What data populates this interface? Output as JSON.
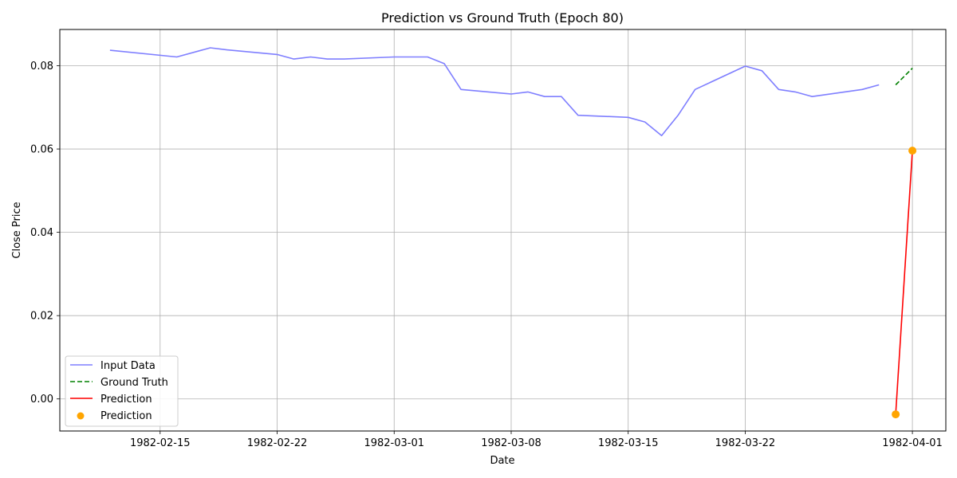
{
  "chart_data": {
    "type": "line",
    "title": "Prediction vs Ground Truth (Epoch 80)",
    "xlabel": "Date",
    "ylabel": "Close Price",
    "x_ticks": [
      "1982-02-15",
      "1982-02-22",
      "1982-03-01",
      "1982-03-08",
      "1982-03-15",
      "1982-03-22",
      "1982-04-01"
    ],
    "y_ticks": [
      "0.00",
      "0.02",
      "0.04",
      "0.06",
      "0.08"
    ],
    "ylim": [
      -0.0077,
      0.0887
    ],
    "xlim": [
      "1982-02-09",
      "1982-04-03"
    ],
    "grid": true,
    "legend_position": "lower-left",
    "series": [
      {
        "name": "Input Data",
        "style": "solid",
        "color": "#7f7fff",
        "points": [
          [
            "1982-02-12",
            0.0837
          ],
          [
            "1982-02-16",
            0.0821
          ],
          [
            "1982-02-18",
            0.0843
          ],
          [
            "1982-02-19",
            0.0838
          ],
          [
            "1982-02-22",
            0.0827
          ],
          [
            "1982-02-23",
            0.0816
          ],
          [
            "1982-02-24",
            0.0821
          ],
          [
            "1982-02-25",
            0.0816
          ],
          [
            "1982-02-26",
            0.0816
          ],
          [
            "1982-03-01",
            0.0821
          ],
          [
            "1982-03-03",
            0.0821
          ],
          [
            "1982-03-04",
            0.0805
          ],
          [
            "1982-03-05",
            0.0743
          ],
          [
            "1982-03-08",
            0.0732
          ],
          [
            "1982-03-09",
            0.0737
          ],
          [
            "1982-03-10",
            0.0726
          ],
          [
            "1982-03-11",
            0.0726
          ],
          [
            "1982-03-12",
            0.0681
          ],
          [
            "1982-03-15",
            0.0676
          ],
          [
            "1982-03-16",
            0.0665
          ],
          [
            "1982-03-17",
            0.0632
          ],
          [
            "1982-03-18",
            0.0682
          ],
          [
            "1982-03-19",
            0.0743
          ],
          [
            "1982-03-22",
            0.0799
          ],
          [
            "1982-03-23",
            0.0788
          ],
          [
            "1982-03-24",
            0.0743
          ],
          [
            "1982-03-25",
            0.0737
          ],
          [
            "1982-03-26",
            0.0726
          ],
          [
            "1982-03-29",
            0.0743
          ],
          [
            "1982-03-30",
            0.0754
          ]
        ]
      },
      {
        "name": "Ground Truth",
        "style": "dashed",
        "color": "#008000",
        "points": [
          [
            "1982-03-31",
            0.0754
          ],
          [
            "1982-04-01",
            0.0794
          ]
        ]
      },
      {
        "name": "Prediction",
        "style": "solid",
        "color": "#ff0000",
        "points": [
          [
            "1982-03-31",
            -0.0037
          ],
          [
            "1982-04-01",
            0.0596
          ]
        ]
      },
      {
        "name": "Prediction",
        "style": "scatter",
        "color": "#ffa500",
        "points": [
          [
            "1982-03-31",
            -0.0037
          ],
          [
            "1982-04-01",
            0.0596
          ]
        ]
      }
    ]
  }
}
